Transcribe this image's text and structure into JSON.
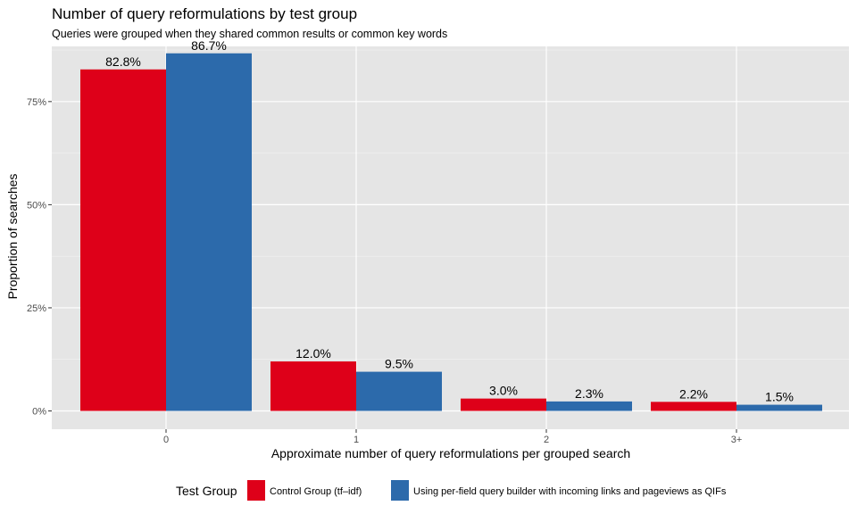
{
  "chart_data": {
    "type": "bar",
    "title": "Number of query reformulations by test group",
    "subtitle": "Queries were grouped when they shared common results or common key words",
    "xlabel": "Approximate number of query reformulations per grouped search",
    "ylabel": "Proportion of searches",
    "categories": [
      "0",
      "1",
      "2",
      "3+"
    ],
    "ylim": [
      0,
      0.9
    ],
    "yticks": [
      0,
      0.25,
      0.5,
      0.75
    ],
    "ytick_labels": [
      "0%",
      "25%",
      "50%",
      "75%"
    ],
    "grid": true,
    "legend_position": "bottom",
    "legend_title": "Test Group",
    "series": [
      {
        "name": "Control Group (tf–idf)",
        "color": "#de0019",
        "values": [
          0.828,
          0.12,
          0.03,
          0.022
        ],
        "labels": [
          "82.8%",
          "12.0%",
          "3.0%",
          "2.2%"
        ]
      },
      {
        "name": "Using per-field query builder with incoming links and pageviews as QIFs",
        "color": "#2c6aab",
        "values": [
          0.867,
          0.095,
          0.023,
          0.015
        ],
        "labels": [
          "86.7%",
          "9.5%",
          "2.3%",
          "1.5%"
        ]
      }
    ]
  }
}
